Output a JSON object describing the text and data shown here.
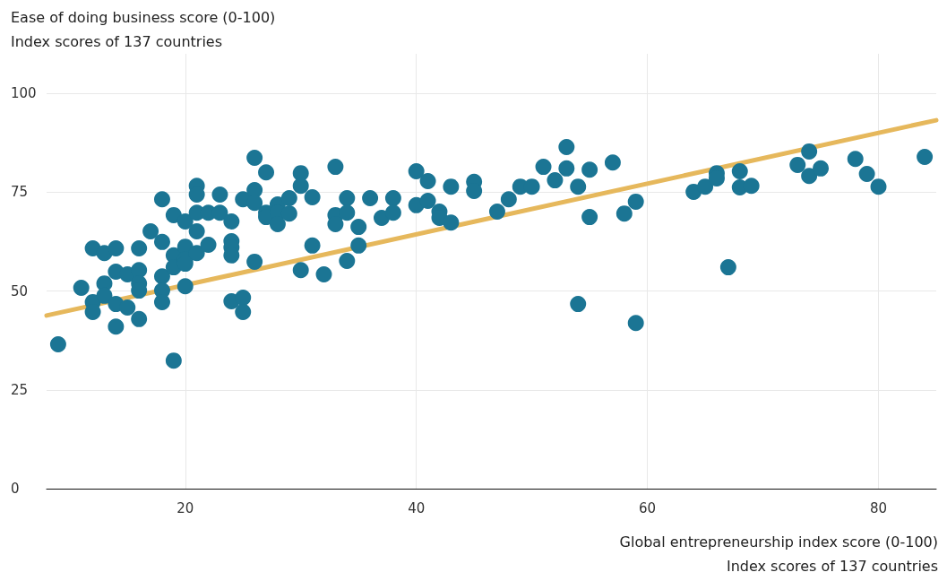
{
  "chart_data": {
    "type": "scatter",
    "ylabel": "Ease of doing business score (0-100)\nIndex scores of 137 countries",
    "xlabel": "Global entrepreneurship index score (0-100)\nIndex scores of 137 countries",
    "xlim": [
      8,
      85
    ],
    "xticks": [
      20,
      40,
      60,
      80
    ],
    "ylim": [
      0,
      110
    ],
    "yticks": [
      0,
      25,
      50,
      75,
      100
    ],
    "grid": true,
    "marker": "circle",
    "series": [
      {
        "color": "#1b7594",
        "x": [
          9,
          11,
          12,
          12,
          12,
          13,
          13,
          13,
          14,
          14,
          14,
          14,
          15,
          15,
          16,
          16,
          16,
          16,
          16,
          17,
          18,
          18,
          18,
          18,
          18,
          19,
          19,
          19,
          19,
          20,
          20,
          20,
          20,
          20,
          21,
          21,
          21,
          21,
          21,
          22,
          22,
          23,
          23,
          24,
          24,
          24,
          24,
          24,
          25,
          25,
          25,
          26,
          26,
          26,
          26,
          27,
          27,
          27,
          28,
          28,
          28,
          29,
          29,
          30,
          30,
          30,
          31,
          31,
          32,
          33,
          33,
          33,
          34,
          34,
          34,
          35,
          35,
          36,
          37,
          38,
          38,
          40,
          40,
          41,
          41,
          42,
          42,
          43,
          43,
          45,
          45,
          47,
          48,
          49,
          50,
          51,
          52,
          53,
          53,
          54,
          54,
          55,
          55,
          57,
          58,
          59,
          59,
          64,
          65,
          66,
          66,
          67,
          68,
          68,
          69,
          73,
          74,
          74,
          75,
          78,
          79,
          80,
          84
        ],
        "values": [
          36.5,
          50.8,
          60.8,
          47.2,
          44.7,
          59.6,
          51.9,
          48.8,
          60.8,
          54.9,
          46.7,
          41.0,
          54.2,
          45.8,
          60.8,
          55.3,
          51.9,
          50.1,
          42.9,
          65.1,
          73.2,
          62.4,
          53.7,
          50.1,
          47.2,
          69.2,
          59.0,
          56.0,
          32.4,
          67.6,
          61.2,
          58.0,
          56.9,
          51.2,
          76.6,
          74.4,
          69.8,
          65.1,
          59.6,
          69.8,
          61.7,
          74.4,
          69.8,
          67.6,
          62.6,
          61.0,
          59.0,
          47.4,
          73.2,
          48.3,
          44.7,
          83.7,
          75.5,
          72.3,
          57.4,
          80.0,
          69.8,
          68.7,
          71.9,
          69.8,
          66.9,
          73.5,
          69.6,
          79.8,
          76.6,
          55.3,
          73.7,
          61.5,
          54.2,
          81.4,
          69.2,
          66.9,
          73.5,
          69.8,
          57.6,
          66.2,
          61.5,
          73.5,
          68.5,
          73.5,
          69.8,
          80.3,
          71.7,
          77.8,
          72.8,
          70.1,
          68.5,
          76.4,
          67.3,
          77.6,
          75.3,
          70.1,
          73.2,
          76.4,
          76.4,
          81.4,
          78.0,
          81.0,
          86.4,
          76.4,
          46.7,
          80.7,
          68.7,
          82.5,
          69.6,
          72.6,
          41.9,
          75.1,
          76.4,
          79.8,
          78.5,
          56.0,
          80.3,
          76.2,
          76.6,
          81.9,
          85.3,
          79.1,
          81.0,
          83.4,
          79.6,
          76.4,
          83.9
        ]
      },
      {
        "type": "line",
        "color": "#e6b85c",
        "marker": "none",
        "x": [
          8,
          85
        ],
        "values": [
          43.8,
          93.2
        ]
      }
    ]
  }
}
